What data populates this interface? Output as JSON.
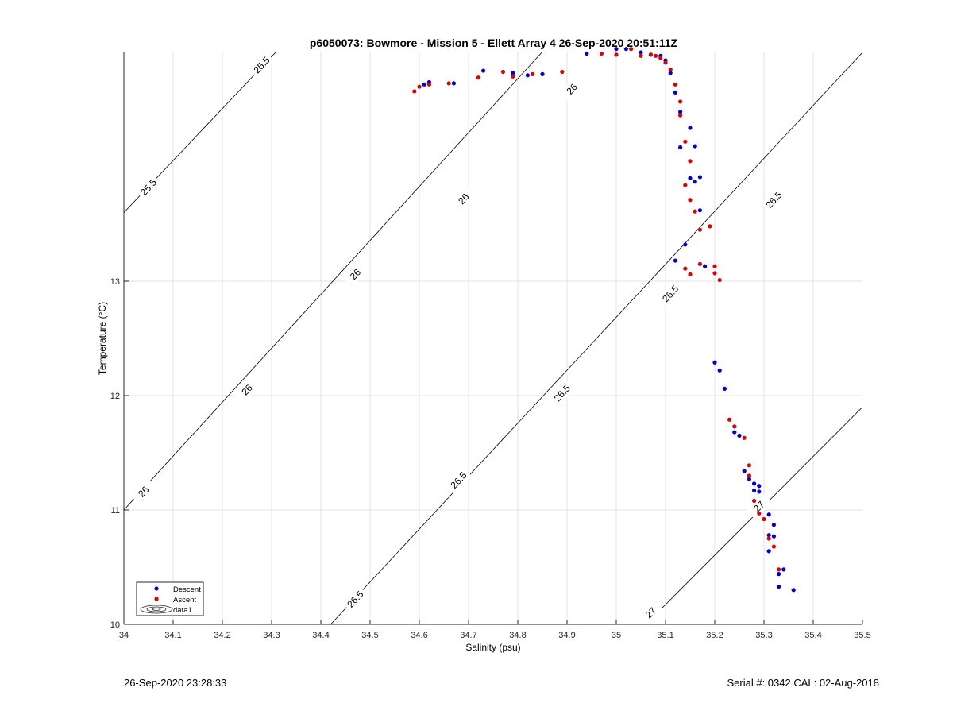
{
  "footer": {
    "timestamp": "26-Sep-2020 23:28:33",
    "serial": "Serial #: 0342  CAL: 02-Aug-2018"
  },
  "colors": {
    "descent": "#0000cc",
    "ascent": "#dd0000",
    "grid": "#e3e3e3",
    "axis": "#262626"
  },
  "chart_data": {
    "type": "scatter",
    "title": "p6050073: Bowmore - Mission 5 - Ellett Array 4 26-Sep-2020 20:51:11Z",
    "xlabel": "Salinity (psu)",
    "ylabel": "Temperature (°C)",
    "xlim": [
      34,
      35.5
    ],
    "ylim": [
      10,
      15
    ],
    "xticks": [
      "34",
      "34.1",
      "34.2",
      "34.3",
      "34.4",
      "34.5",
      "34.6",
      "34.7",
      "34.8",
      "34.9",
      "35",
      "35.1",
      "35.2",
      "35.3",
      "35.4",
      "35.5"
    ],
    "yticks": [
      "10",
      "11",
      "12",
      "13"
    ],
    "grid": true,
    "legend": {
      "position": "bottom-left",
      "entries": [
        "Descent",
        "Ascent",
        "data1"
      ]
    },
    "contours": [
      {
        "label": "25.5",
        "points": [
          [
            34.0,
            13.6
          ],
          [
            34.33,
            15.1
          ]
        ],
        "label_at": [
          [
            34.05,
            13.82
          ],
          [
            34.28,
            14.89
          ]
        ]
      },
      {
        "label": "26",
        "points": [
          [
            34.0,
            11.0
          ],
          [
            34.87,
            15.1
          ]
        ],
        "label_at": [
          [
            34.04,
            11.16
          ],
          [
            34.25,
            12.05
          ],
          [
            34.47,
            13.06
          ],
          [
            34.69,
            13.72
          ],
          [
            34.91,
            14.68
          ]
        ]
      },
      {
        "label": "26.5",
        "points": [
          [
            34.42,
            10.0
          ],
          [
            35.5,
            15.0
          ]
        ],
        "label_at": [
          [
            34.47,
            10.22
          ],
          [
            34.68,
            11.26
          ],
          [
            34.89,
            12.02
          ],
          [
            35.11,
            12.89
          ],
          [
            35.32,
            13.71
          ]
        ]
      },
      {
        "label": "27",
        "points": [
          [
            35.06,
            10.0
          ],
          [
            35.5,
            11.9
          ]
        ],
        "label_at": [
          [
            35.07,
            10.1
          ],
          [
            35.29,
            11.03
          ]
        ]
      }
    ],
    "series": [
      {
        "name": "Descent",
        "x": [
          34.61,
          34.62,
          34.67,
          34.73,
          34.79,
          34.82,
          34.85,
          34.94,
          35.0,
          35.02,
          35.05,
          35.07,
          35.09,
          35.1,
          35.11,
          35.12,
          35.13,
          35.15,
          35.13,
          35.16,
          35.15,
          35.17,
          35.16,
          35.17,
          35.2,
          35.21,
          35.22,
          35.24,
          35.25,
          35.26,
          35.27,
          35.28,
          35.28,
          35.29,
          35.29,
          35.31,
          35.32,
          35.31,
          35.32,
          35.31,
          35.33,
          35.34,
          35.33,
          35.36,
          35.12,
          35.14,
          35.18
        ],
        "y": [
          14.72,
          14.74,
          14.73,
          14.84,
          14.82,
          14.8,
          14.81,
          14.99,
          15.03,
          15.03,
          15.0,
          14.98,
          14.97,
          14.93,
          14.82,
          14.65,
          14.48,
          14.34,
          14.17,
          14.18,
          13.9,
          13.91,
          13.87,
          13.62,
          12.29,
          12.22,
          12.06,
          11.68,
          11.65,
          11.34,
          11.27,
          11.23,
          11.17,
          11.21,
          11.16,
          10.96,
          10.87,
          10.78,
          10.77,
          10.64,
          10.44,
          10.48,
          10.33,
          10.3,
          13.18,
          13.32,
          13.13
        ]
      },
      {
        "name": "Ascent",
        "x": [
          34.59,
          34.6,
          34.62,
          34.66,
          34.72,
          34.77,
          34.79,
          34.83,
          34.89,
          34.97,
          35.0,
          35.03,
          35.05,
          35.07,
          35.08,
          35.09,
          35.1,
          35.11,
          35.12,
          35.13,
          35.13,
          35.14,
          35.15,
          35.14,
          35.15,
          35.16,
          35.17,
          35.19,
          35.2,
          35.2,
          35.21,
          35.23,
          35.24,
          35.26,
          35.27,
          35.27,
          35.28,
          35.29,
          35.3,
          35.31,
          35.32,
          35.33,
          35.14,
          35.15,
          35.17
        ],
        "y": [
          14.66,
          14.7,
          14.72,
          14.73,
          14.78,
          14.83,
          14.79,
          14.81,
          14.83,
          14.99,
          14.98,
          15.03,
          14.97,
          14.98,
          14.97,
          14.95,
          14.91,
          14.85,
          14.72,
          14.57,
          14.45,
          14.22,
          14.05,
          13.84,
          13.71,
          13.61,
          13.45,
          13.48,
          13.13,
          13.07,
          13.01,
          11.79,
          11.73,
          11.63,
          11.39,
          11.3,
          11.08,
          10.97,
          10.92,
          10.75,
          10.68,
          10.48,
          13.11,
          13.06,
          13.15
        ]
      }
    ]
  }
}
